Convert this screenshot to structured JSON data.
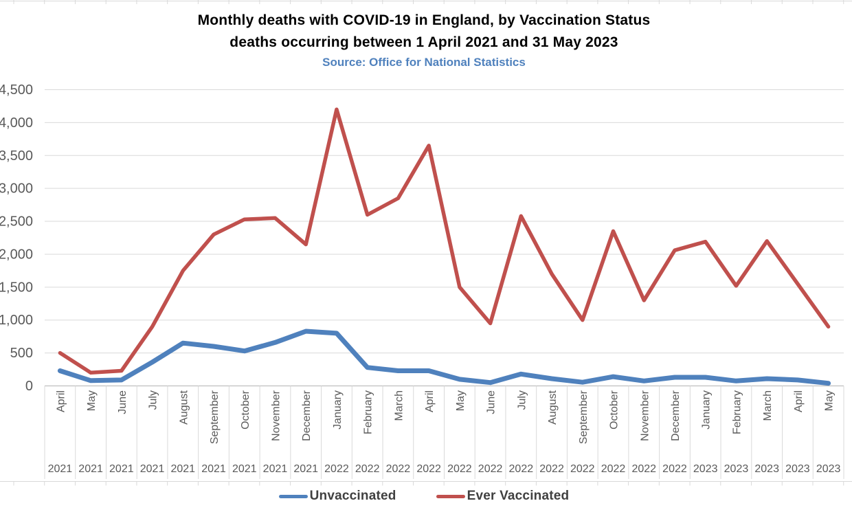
{
  "header": {
    "title": "Monthly deaths with COVID-19 in England, by Vaccination Status",
    "subtitle": "deaths occurring between 1 April 2021 and 31 May 2023",
    "source": "Source: Office for National Statistics"
  },
  "chart_data": {
    "type": "line",
    "title": "Monthly deaths with COVID-19 in England, by Vaccination Status",
    "subtitle": "deaths occurring between 1 April 2021 and 31 May 2023",
    "source": "Source: Office for National Statistics",
    "months": [
      "April",
      "May",
      "June",
      "July",
      "August",
      "September",
      "October",
      "November",
      "December",
      "January",
      "February",
      "March",
      "April",
      "May",
      "June",
      "July",
      "August",
      "September",
      "October",
      "November",
      "December",
      "January",
      "February",
      "March",
      "April",
      "May"
    ],
    "years": [
      "2021",
      "2021",
      "2021",
      "2021",
      "2021",
      "2021",
      "2021",
      "2021",
      "2021",
      "2022",
      "2022",
      "2022",
      "2022",
      "2022",
      "2022",
      "2022",
      "2022",
      "2022",
      "2022",
      "2022",
      "2022",
      "2023",
      "2023",
      "2023",
      "2023",
      "2023"
    ],
    "y_tick_labels": [
      "0",
      "500",
      "1,000",
      "1,500",
      "2,000",
      "2,500",
      "3,000",
      "3,500",
      "4,000",
      "4,500"
    ],
    "ylim": [
      0,
      4500
    ],
    "ytick_step": 500,
    "grid": true,
    "legend_position": "bottom",
    "series": [
      {
        "name": "Unvaccinated",
        "color": "#4F81BD",
        "values": [
          230,
          80,
          90,
          360,
          650,
          600,
          530,
          660,
          830,
          800,
          280,
          230,
          230,
          100,
          50,
          180,
          110,
          55,
          140,
          75,
          130,
          130,
          75,
          110,
          90,
          40
        ]
      },
      {
        "name": "Ever Vaccinated",
        "color": "#C0504D",
        "values": [
          500,
          200,
          230,
          900,
          1750,
          2300,
          2530,
          2550,
          2150,
          4200,
          2600,
          2850,
          3650,
          1500,
          950,
          2580,
          1700,
          1000,
          2350,
          1300,
          2060,
          2190,
          1520,
          2200,
          1550,
          900
        ]
      }
    ],
    "colors": {
      "gridline": "#D9D9D9",
      "axis_line": "#BFBFBF",
      "tick_label": "#595959",
      "source_text": "#4F81BD",
      "legend_text": "#404040"
    }
  }
}
